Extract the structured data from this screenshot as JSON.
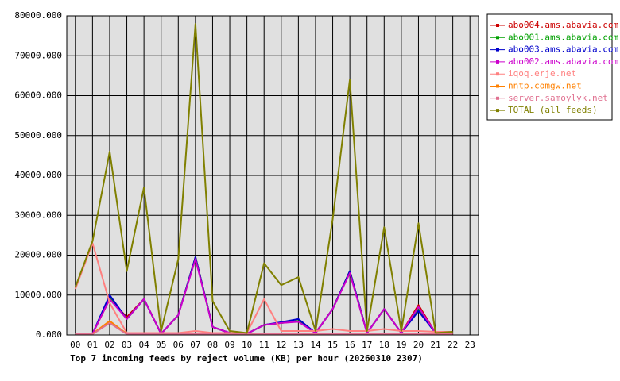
{
  "chart_data": {
    "type": "line",
    "title": "Top 7 incoming feeds by reject volume (KB) per hour (20260310 2307)",
    "categories": [
      "00",
      "01",
      "02",
      "03",
      "04",
      "05",
      "06",
      "07",
      "08",
      "09",
      "10",
      "11",
      "12",
      "13",
      "14",
      "15",
      "16",
      "17",
      "18",
      "19",
      "20",
      "21",
      "22",
      "23"
    ],
    "ylim": [
      0,
      80000
    ],
    "yticks": [
      {
        "value": 0,
        "label": "0.000"
      },
      {
        "value": 10000,
        "label": "10000.000"
      },
      {
        "value": 20000,
        "label": "20000.000"
      },
      {
        "value": 30000,
        "label": "30000.000"
      },
      {
        "value": 40000,
        "label": "40000.000"
      },
      {
        "value": 50000,
        "label": "50000.000"
      },
      {
        "value": 60000,
        "label": "60000.000"
      },
      {
        "value": 70000,
        "label": "70000.000"
      },
      {
        "value": 80000,
        "label": "80000.000"
      }
    ],
    "grid": true,
    "legend": "right",
    "series": [
      {
        "name": "abo004.ams.abavia.com",
        "color": "#cc0000",
        "values": [
          300,
          300,
          9000,
          4500,
          9000,
          300,
          5000,
          19500,
          2000,
          500,
          300,
          2500,
          3000,
          3500,
          500,
          6500,
          16000,
          500,
          6500,
          500,
          7500,
          500,
          500,
          null
        ]
      },
      {
        "name": "abo001.ams.abavia.com",
        "color": "#00a000",
        "values": [
          300,
          300,
          9500,
          4000,
          9000,
          300,
          5000,
          19500,
          2000,
          500,
          300,
          2500,
          3000,
          3500,
          500,
          6500,
          16000,
          500,
          6500,
          500,
          6500,
          500,
          600,
          null
        ]
      },
      {
        "name": "abo003.ams.abavia.com",
        "color": "#0000cc",
        "values": [
          300,
          300,
          10000,
          4000,
          9000,
          300,
          5000,
          19500,
          2000,
          500,
          300,
          2500,
          3200,
          4000,
          500,
          6500,
          16000,
          500,
          6500,
          500,
          6000,
          500,
          500,
          null
        ]
      },
      {
        "name": "abo002.ams.abavia.com",
        "color": "#cc00cc",
        "values": [
          300,
          300,
          9000,
          4000,
          9000,
          300,
          5000,
          19000,
          2000,
          500,
          300,
          2500,
          3000,
          3300,
          500,
          6500,
          15500,
          500,
          6500,
          500,
          7000,
          500,
          500,
          null
        ]
      },
      {
        "name": "iqoq.erje.net",
        "color": "#ff8080",
        "values": [
          11500,
          23000,
          8000,
          500,
          500,
          500,
          500,
          1000,
          500,
          500,
          500,
          9000,
          1000,
          1000,
          1000,
          1500,
          1000,
          1000,
          1500,
          1000,
          1000,
          800,
          800,
          null
        ]
      },
      {
        "name": "nntp.comgw.net",
        "color": "#ff8000",
        "values": [
          300,
          300,
          3500,
          300,
          300,
          300,
          300,
          300,
          300,
          300,
          300,
          300,
          300,
          300,
          300,
          300,
          300,
          300,
          300,
          300,
          300,
          300,
          300,
          null
        ]
      },
      {
        "name": "server.samoylyk.net",
        "color": "#e07090",
        "values": [
          200,
          200,
          3000,
          200,
          200,
          200,
          200,
          200,
          200,
          200,
          200,
          200,
          200,
          200,
          200,
          200,
          200,
          200,
          200,
          200,
          200,
          200,
          200,
          null
        ]
      },
      {
        "name": "TOTAL (all feeds)",
        "color": "#808000",
        "values": [
          12000,
          23500,
          46000,
          16000,
          37000,
          1000,
          19000,
          78000,
          8500,
          1000,
          500,
          18000,
          12500,
          14500,
          1000,
          29000,
          64000,
          1000,
          27000,
          1000,
          28000,
          500,
          800,
          null
        ]
      }
    ]
  }
}
